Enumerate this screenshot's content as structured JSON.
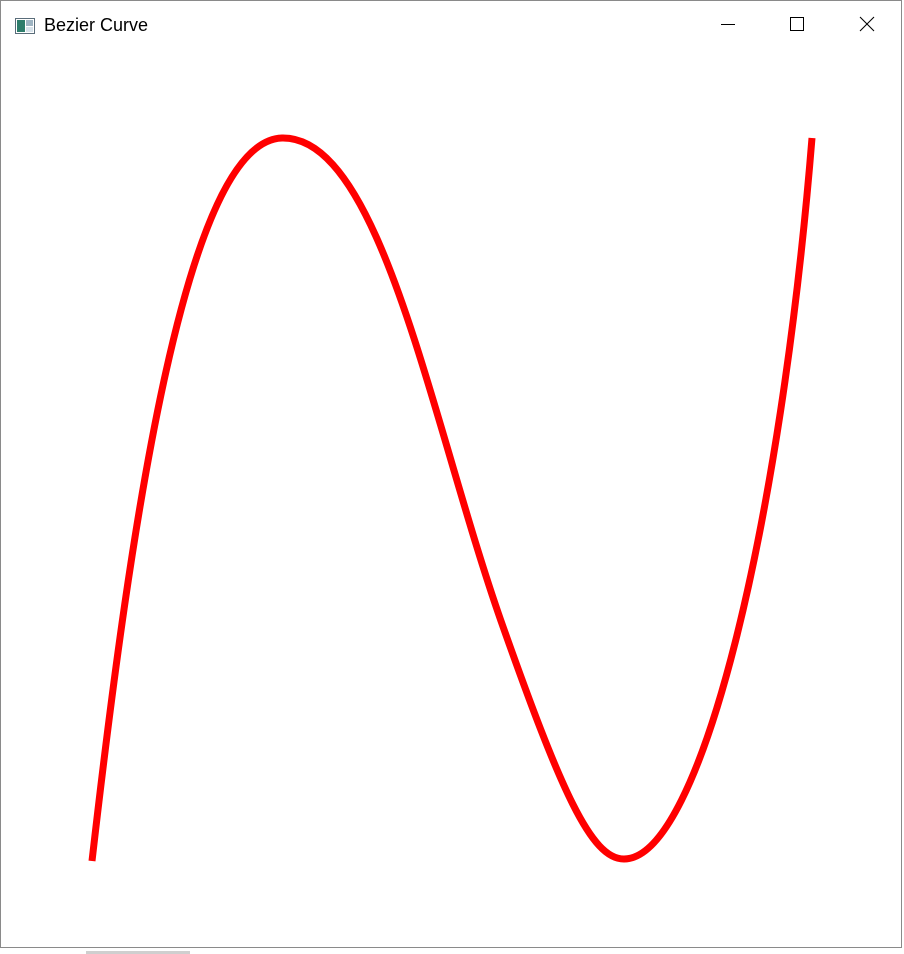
{
  "window": {
    "title": "Bezier Curve",
    "icon": "app-window-icon",
    "controls": {
      "minimize_icon": "minimize-icon",
      "maximize_icon": "maximize-icon",
      "close_icon": "close-icon"
    }
  },
  "canvas": {
    "background": "#ffffff",
    "curve_color": "#ff0000",
    "curve_icon": "bezier-curve"
  }
}
